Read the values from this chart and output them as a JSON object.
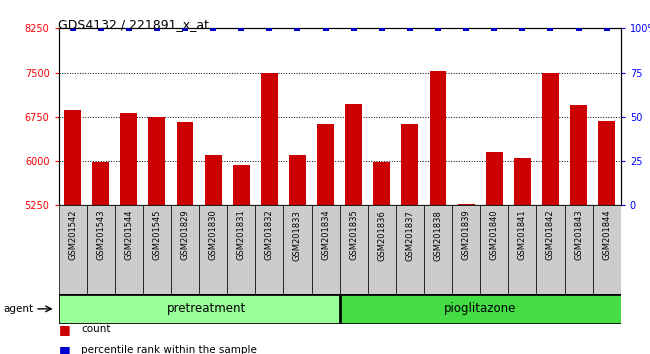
{
  "title": "GDS4132 / 221891_x_at",
  "samples": [
    "GSM201542",
    "GSM201543",
    "GSM201544",
    "GSM201545",
    "GSM201829",
    "GSM201830",
    "GSM201831",
    "GSM201832",
    "GSM201833",
    "GSM201834",
    "GSM201835",
    "GSM201836",
    "GSM201837",
    "GSM201838",
    "GSM201839",
    "GSM201840",
    "GSM201841",
    "GSM201842",
    "GSM201843",
    "GSM201844"
  ],
  "counts": [
    6870,
    5980,
    6820,
    6750,
    6660,
    6100,
    5930,
    7490,
    6110,
    6620,
    6970,
    5990,
    6620,
    7530,
    5280,
    6160,
    6060,
    7490,
    6950,
    6680
  ],
  "percentile": [
    100,
    100,
    100,
    100,
    100,
    100,
    100,
    100,
    100,
    100,
    100,
    100,
    100,
    100,
    100,
    100,
    100,
    100,
    100,
    100
  ],
  "ylim_left": [
    5250,
    8250
  ],
  "ylim_right": [
    0,
    100
  ],
  "yticks_left": [
    5250,
    6000,
    6750,
    7500,
    8250
  ],
  "yticks_right": [
    0,
    25,
    50,
    75,
    100
  ],
  "ytick_labels_right": [
    "0",
    "25",
    "50",
    "75",
    "100%"
  ],
  "bar_color": "#cc0000",
  "scatter_color": "#0000cc",
  "cell_bg": "#cccccc",
  "pretreatment_label": "pretreatment",
  "pioglitazone_label": "pioglitazone",
  "pretreatment_color": "#99ff99",
  "pioglitazone_color": "#44dd44",
  "agent_label": "agent",
  "legend_count": "count",
  "legend_percentile": "percentile rank within the sample",
  "n_pretreatment": 10,
  "n_pioglitazone": 10
}
